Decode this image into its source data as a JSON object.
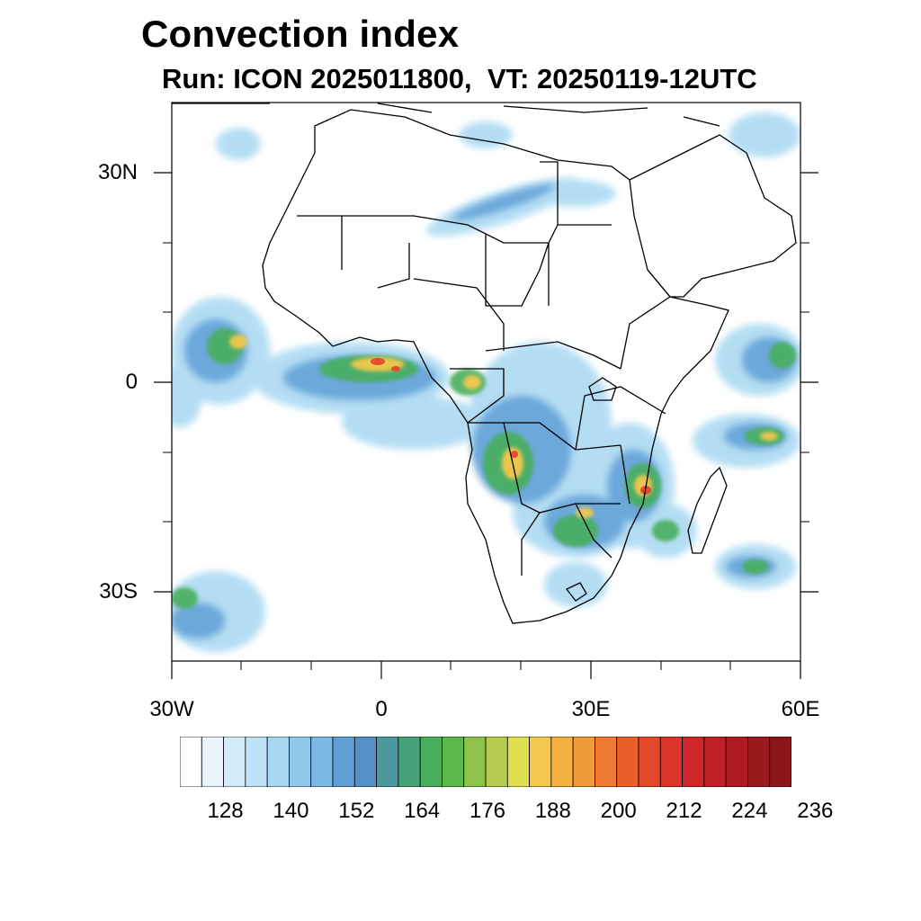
{
  "title": "Convection index",
  "subtitle": "Run: ICON 2025011800,  VT: 20250119-12UTC",
  "axes": {
    "y_ticks": [
      {
        "label": "30N",
        "lat": 30
      },
      {
        "label": "0",
        "lat": 0
      },
      {
        "label": "30S",
        "lat": -30
      }
    ],
    "x_ticks": [
      {
        "label": "30W",
        "lon": -30
      },
      {
        "label": "0",
        "lon": 0
      },
      {
        "label": "30E",
        "lon": 30
      },
      {
        "label": "60E",
        "lon": 60
      }
    ],
    "lon_range": [
      -30,
      60
    ],
    "lat_range": [
      -40,
      40
    ]
  },
  "colorbar": {
    "labels": [
      "128",
      "140",
      "152",
      "164",
      "176",
      "188",
      "200",
      "212",
      "224",
      "236"
    ],
    "colors": [
      "#ffffff",
      "#e8f4fc",
      "#d2ebf8",
      "#bfe2f6",
      "#a7d8f2",
      "#8fc9ec",
      "#7bb8e2",
      "#5f9fd6",
      "#5590c4",
      "#4a9aa0",
      "#46a37a",
      "#47ae5c",
      "#5bb84a",
      "#8ec24c",
      "#b5cc4e",
      "#e2de52",
      "#f3c84c",
      "#f5b043",
      "#f19a3c",
      "#ee7a34",
      "#e9602d",
      "#e4482b",
      "#dc3429",
      "#cf2727",
      "#bf1f26",
      "#ad1a22",
      "#9b1a1d",
      "#8a1818"
    ]
  },
  "colors": {
    "coast": "#000000",
    "low": "#7bb8e2",
    "mid": "#47ae5c",
    "high": "#f3c84c",
    "peak": "#e4482b"
  }
}
